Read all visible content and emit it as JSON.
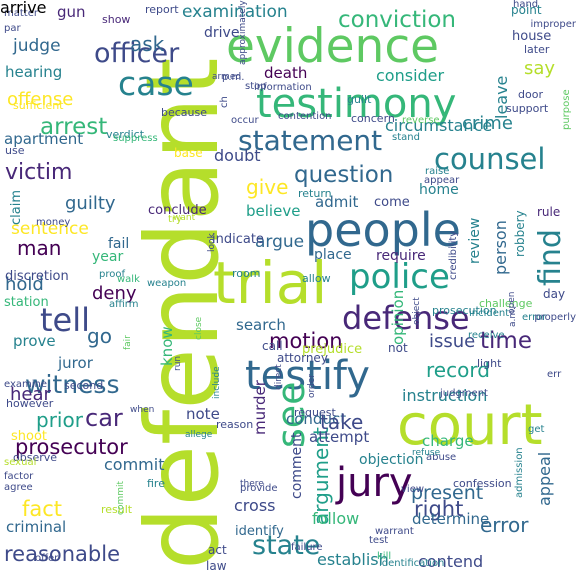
{
  "words": [
    {
      "text": "defendant",
      "color": "#b5de2b"
    },
    {
      "text": "trial",
      "color": "#b5de2b"
    },
    {
      "text": "court",
      "color": "#b5de2b"
    },
    {
      "text": "evidence",
      "color": "#5ec962"
    },
    {
      "text": "people",
      "color": "#31688e"
    },
    {
      "text": "testimony",
      "color": "#35b779"
    },
    {
      "text": "testify",
      "color": "#31688e"
    },
    {
      "text": "jury",
      "color": "#440154"
    },
    {
      "text": "police",
      "color": "#1f9e89"
    },
    {
      "text": "defense",
      "color": "#482878"
    },
    {
      "text": "case",
      "color": "#26828e"
    },
    {
      "text": "officer",
      "color": "#3e4a89"
    },
    {
      "text": "statement",
      "color": "#31688e"
    },
    {
      "text": "counsel",
      "color": "#26828e"
    },
    {
      "text": "find",
      "color": "#26828e"
    },
    {
      "text": "witness",
      "color": "#31688e"
    },
    {
      "text": "conviction",
      "color": "#35b779"
    },
    {
      "text": "state",
      "color": "#26828e"
    },
    {
      "text": "arrest",
      "color": "#35b779"
    },
    {
      "text": "question",
      "color": "#31688e"
    },
    {
      "text": "victim",
      "color": "#482878"
    },
    {
      "text": "motion",
      "color": "#440154"
    },
    {
      "text": "tell",
      "color": "#3e4a89"
    },
    {
      "text": "time",
      "color": "#482878"
    },
    {
      "text": "issue",
      "color": "#3e4a89"
    },
    {
      "text": "examination",
      "color": "#26828e"
    },
    {
      "text": "give",
      "color": "#fde725"
    },
    {
      "text": "guilty",
      "color": "#31688e"
    },
    {
      "text": "man",
      "color": "#440154"
    },
    {
      "text": "argue",
      "color": "#31688e"
    },
    {
      "text": "argument",
      "color": "#1f9e89"
    },
    {
      "text": "prosecutor",
      "color": "#440154"
    },
    {
      "text": "right",
      "color": "#3e4a89"
    },
    {
      "text": "error",
      "color": "#31688e"
    },
    {
      "text": "reasonable",
      "color": "#3e4a89"
    },
    {
      "text": "see",
      "color": "#35b779"
    },
    {
      "text": "record",
      "color": "#1f9e89"
    },
    {
      "text": "present",
      "color": "#31688e"
    },
    {
      "text": "crime",
      "color": "#26828e"
    },
    {
      "text": "say",
      "color": "#b5de2b"
    },
    {
      "text": "ask",
      "color": "#31688e"
    },
    {
      "text": "deny",
      "color": "#440154"
    },
    {
      "text": "fact",
      "color": "#fde725"
    },
    {
      "text": "car",
      "color": "#482878"
    },
    {
      "text": "prior",
      "color": "#1f9e89"
    },
    {
      "text": "hold",
      "color": "#31688e"
    },
    {
      "text": "go",
      "color": "#31688e"
    },
    {
      "text": "offense",
      "color": "#fde725"
    },
    {
      "text": "sentence",
      "color": "#fde725"
    },
    {
      "text": "death",
      "color": "#440154"
    },
    {
      "text": "consider",
      "color": "#1f9e89"
    },
    {
      "text": "circumstance",
      "color": "#26828e"
    },
    {
      "text": "doubt",
      "color": "#3e4a89"
    },
    {
      "text": "believe",
      "color": "#1f9e89"
    },
    {
      "text": "murder",
      "color": "#482878"
    },
    {
      "text": "search",
      "color": "#31688e"
    },
    {
      "text": "instruction",
      "color": "#26828e"
    },
    {
      "text": "conduct",
      "color": "#31688e"
    },
    {
      "text": "take",
      "color": "#3e4a89"
    },
    {
      "text": "attempt",
      "color": "#3e4a89"
    },
    {
      "text": "charge",
      "color": "#35b779"
    },
    {
      "text": "commit",
      "color": "#31688e"
    },
    {
      "text": "juror",
      "color": "#31688e"
    },
    {
      "text": "hear",
      "color": "#482878"
    },
    {
      "text": "prove",
      "color": "#26828e"
    },
    {
      "text": "know",
      "color": "#35b779"
    },
    {
      "text": "note",
      "color": "#3e4a89"
    },
    {
      "text": "cross",
      "color": "#3e4a89"
    },
    {
      "text": "follow",
      "color": "#35b779"
    },
    {
      "text": "determine",
      "color": "#31688e"
    },
    {
      "text": "contend",
      "color": "#3e4a89"
    },
    {
      "text": "establish",
      "color": "#26828e"
    },
    {
      "text": "appeal",
      "color": "#31688e"
    },
    {
      "text": "opinion",
      "color": "#35b779"
    },
    {
      "text": "person",
      "color": "#31688e"
    },
    {
      "text": "review",
      "color": "#26828e"
    },
    {
      "text": "fail",
      "color": "#31688e"
    },
    {
      "text": "year",
      "color": "#35b779"
    },
    {
      "text": "admit",
      "color": "#31688e"
    },
    {
      "text": "come",
      "color": "#3e4a89"
    },
    {
      "text": "place",
      "color": "#31688e"
    },
    {
      "text": "require",
      "color": "#482878"
    },
    {
      "text": "home",
      "color": "#26828e"
    },
    {
      "text": "judge",
      "color": "#31688e"
    },
    {
      "text": "hearing",
      "color": "#26828e"
    },
    {
      "text": "gun",
      "color": "#482878"
    },
    {
      "text": "apartment",
      "color": "#31688e"
    },
    {
      "text": "criminal",
      "color": "#31688e"
    },
    {
      "text": "objection",
      "color": "#26828e"
    },
    {
      "text": "identify",
      "color": "#31688e"
    },
    {
      "text": "comment",
      "color": "#3e4a89"
    },
    {
      "text": "claim",
      "color": "#26828e"
    },
    {
      "text": "indicate",
      "color": "#3e4a89"
    },
    {
      "text": "conclude",
      "color": "#482878"
    },
    {
      "text": "shoot",
      "color": "#fde725"
    },
    {
      "text": "call",
      "color": "#3e4a89"
    },
    {
      "text": "attorney",
      "color": "#3e4a89"
    },
    {
      "text": "prejudice",
      "color": "#b5de2b"
    },
    {
      "text": "drive",
      "color": "#3e4a89"
    },
    {
      "text": "leave",
      "color": "#26828e"
    },
    {
      "text": "house",
      "color": "#3e4a89"
    },
    {
      "text": "robbery",
      "color": "#26828e"
    },
    {
      "text": "rule",
      "color": "#482878"
    },
    {
      "text": "act",
      "color": "#3e4a89"
    },
    {
      "text": "law",
      "color": "#3e4a89"
    },
    {
      "text": "day",
      "color": "#3e4a89"
    },
    {
      "text": "not",
      "color": "#3e4a89"
    },
    {
      "text": "station",
      "color": "#35b779"
    },
    {
      "text": "discretion",
      "color": "#3e4a89"
    },
    {
      "text": "second",
      "color": "#3e4a89"
    },
    {
      "text": "room",
      "color": "#26828e"
    },
    {
      "text": "allow",
      "color": "#26828e"
    },
    {
      "text": "return",
      "color": "#26828e"
    },
    {
      "text": "prosecution",
      "color": "#26828e"
    },
    {
      "text": "base",
      "color": "#fde725"
    },
    {
      "text": "point",
      "color": "#26828e"
    },
    {
      "text": "later",
      "color": "#3e4a89"
    },
    {
      "text": "support",
      "color": "#3e4a89"
    },
    {
      "text": "door",
      "color": "#3e4a89"
    },
    {
      "text": "show",
      "color": "#482878"
    },
    {
      "text": "report",
      "color": "#3e4a89"
    },
    {
      "text": "guilt",
      "color": "#26828e"
    },
    {
      "text": "concern",
      "color": "#3e4a89"
    },
    {
      "text": "because",
      "color": "#3e4a89"
    },
    {
      "text": "verdict",
      "color": "#26828e"
    },
    {
      "text": "use",
      "color": "#3e4a89"
    },
    {
      "text": "light",
      "color": "#3e4a89"
    },
    {
      "text": "reason",
      "color": "#3e4a89"
    },
    {
      "text": "request",
      "color": "#3e4a89"
    },
    {
      "text": "result",
      "color": "#b5de2b"
    },
    {
      "text": "fire",
      "color": "#26828e"
    },
    {
      "text": "however",
      "color": "#3e4a89"
    },
    {
      "text": "observe",
      "color": "#3e4a89"
    },
    {
      "text": "sufficient",
      "color": "#fde725"
    },
    {
      "text": "proof",
      "color": "#26828e"
    },
    {
      "text": "weapon",
      "color": "#26828e"
    },
    {
      "text": "judgment",
      "color": "#3e4a89"
    },
    {
      "text": "incident",
      "color": "#26828e"
    },
    {
      "text": "receive",
      "color": "#26828e"
    },
    {
      "text": "challenge",
      "color": "#5ec962"
    },
    {
      "text": "error",
      "color": "#26828e"
    },
    {
      "text": "walk",
      "color": "#35b779"
    },
    {
      "text": "affirm",
      "color": "#26828e"
    },
    {
      "text": "try",
      "color": "#b5de2b"
    },
    {
      "text": "raise",
      "color": "#26828e"
    },
    {
      "text": "appear",
      "color": "#3e4a89"
    },
    {
      "text": "abuse",
      "color": "#3e4a89"
    },
    {
      "text": "confession",
      "color": "#3e4a89"
    },
    {
      "text": "admission",
      "color": "#26828e"
    },
    {
      "text": "provide",
      "color": "#3e4a89"
    },
    {
      "text": "view",
      "color": "#3e4a89"
    },
    {
      "text": "warrant",
      "color": "#3e4a89"
    },
    {
      "text": "kill",
      "color": "#35b779"
    },
    {
      "text": "failure",
      "color": "#3e4a89"
    },
    {
      "text": "identification",
      "color": "#26828e"
    },
    {
      "text": "offer",
      "color": "#3e4a89"
    },
    {
      "text": "examine",
      "color": "#3e4a89"
    },
    {
      "text": "factor",
      "color": "#3e4a89"
    },
    {
      "text": "sexual",
      "color": "#b5de2b"
    },
    {
      "text": "agree",
      "color": "#3e4a89"
    },
    {
      "text": "money",
      "color": "#3e4a89"
    },
    {
      "text": "suppress",
      "color": "#35b779"
    },
    {
      "text": "information",
      "color": "#3e4a89"
    },
    {
      "text": "contention",
      "color": "#3e4a89"
    },
    {
      "text": "reverse",
      "color": "#5ec962"
    },
    {
      "text": "stand",
      "color": "#26828e"
    },
    {
      "text": "p.m.",
      "color": "#3e4a89"
    },
    {
      "text": "a.m.",
      "color": "#3e4a89"
    },
    {
      "text": "armed",
      "color": "#3e4a89"
    },
    {
      "text": "hand",
      "color": "#3e4a89"
    },
    {
      "text": "improper",
      "color": "#3e4a89"
    },
    {
      "text": "matter",
      "color": "#3e4a89"
    },
    {
      "text": "par",
      "color": "#3e4a89"
    },
    {
      "text": "purpose",
      "color": "#5ec962"
    },
    {
      "text": "want",
      "color": "#b5de2b"
    },
    {
      "text": "object",
      "color": "#3e4a89"
    },
    {
      "text": "credibility",
      "color": "#3e4a89"
    },
    {
      "text": "properly",
      "color": "#3e4a89"
    },
    {
      "text": "err",
      "color": "#3e4a89"
    },
    {
      "text": "get",
      "color": "#26828e"
    },
    {
      "text": "run",
      "color": "#3e4a89"
    },
    {
      "text": "include",
      "color": "#26828e"
    },
    {
      "text": "direct",
      "color": "#3e4a89"
    },
    {
      "text": "order",
      "color": "#3e4a89"
    },
    {
      "text": "allege",
      "color": "#26828e"
    },
    {
      "text": "there",
      "color": "#3e4a89"
    },
    {
      "text": "test",
      "color": "#3e4a89"
    },
    {
      "text": "refuse",
      "color": "#26828e"
    },
    {
      "text": "approximately",
      "color": "#3e4a89"
    },
    {
      "text": "occur",
      "color": "#3e4a89"
    },
    {
      "text": "stop",
      "color": "#3e4a89"
    },
    {
      "text": "ch",
      "color": "#3e4a89"
    },
    {
      "text": "when",
      "color": "#3e4a89"
    },
    {
      "text": "look",
      "color": "#3e4a89"
    },
    {
      "text": "close",
      "color": "#5ec962"
    },
    {
      "text": "fair",
      "color": "#5ec962"
    },
    {
      "text": "commit",
      "color": "#5ec962"
    },
    {
      "text": "open",
      "color": "#3e4a89"
    },
    {
      "text": "arrive",
      "color": "#3e4a89"
    }
  ]
}
